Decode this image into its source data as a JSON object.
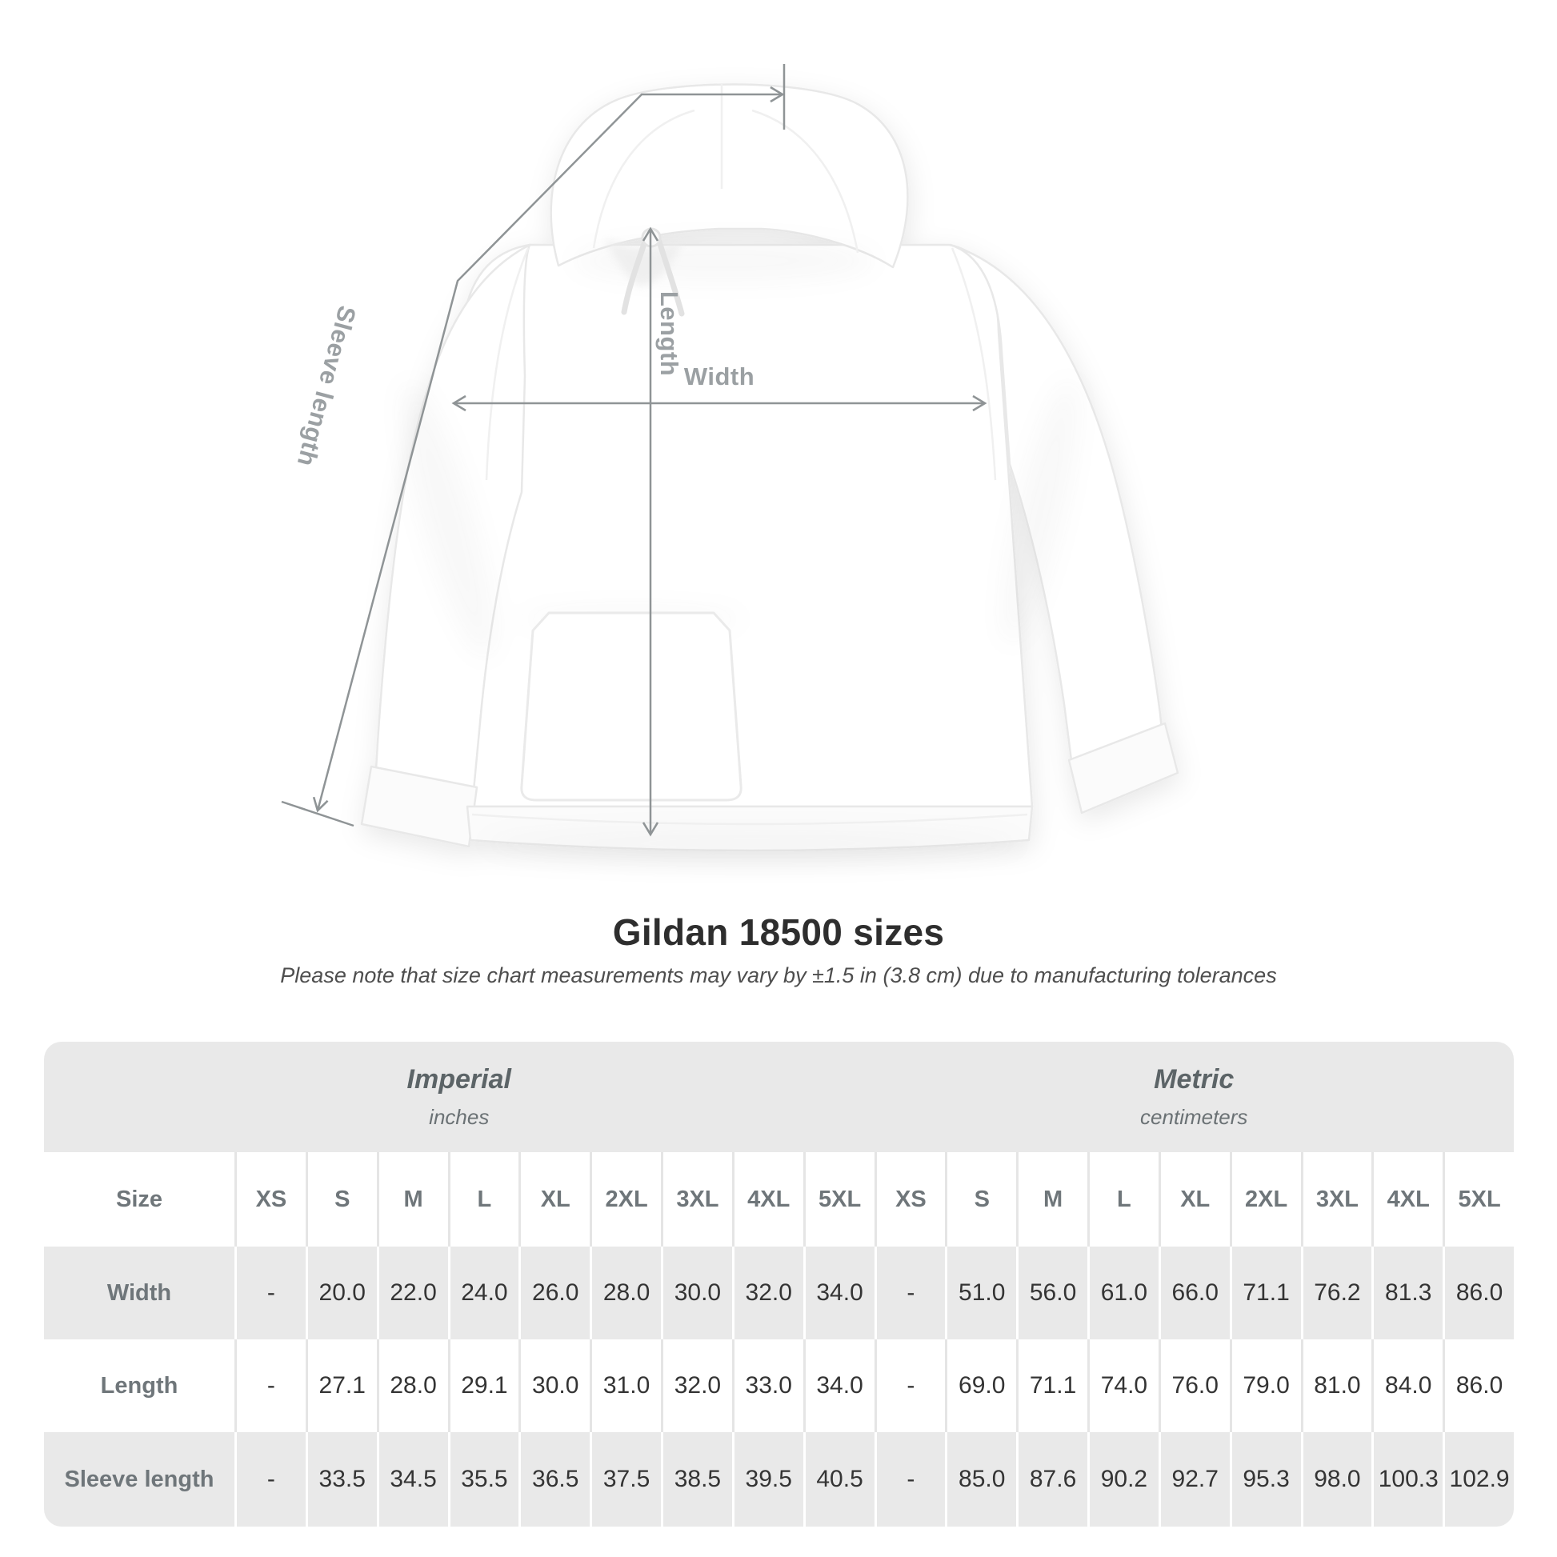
{
  "diagram": {
    "width_label": "Width",
    "length_label": "Length",
    "sleeve_label": "Sleeve length",
    "line_color": "#8f9496",
    "label_color": "#9ba0a3"
  },
  "title": "Gildan 18500 sizes",
  "subtitle": "Please note that size chart measurements may vary by ±1.5 in (3.8 cm) due to manufacturing tolerances",
  "table": {
    "size_header": "Size",
    "unit_groups": [
      {
        "name": "Imperial",
        "unit": "inches"
      },
      {
        "name": "Metric",
        "unit": "centimeters"
      }
    ],
    "sizes": [
      "XS",
      "S",
      "M",
      "L",
      "XL",
      "2XL",
      "3XL",
      "4XL",
      "5XL"
    ],
    "rows": [
      {
        "label": "Width",
        "imperial": [
          "-",
          "20.0",
          "22.0",
          "24.0",
          "26.0",
          "28.0",
          "30.0",
          "32.0",
          "34.0"
        ],
        "metric": [
          "-",
          "51.0",
          "56.0",
          "61.0",
          "66.0",
          "71.1",
          "76.2",
          "81.3",
          "86.0"
        ]
      },
      {
        "label": "Length",
        "imperial": [
          "-",
          "27.1",
          "28.0",
          "29.1",
          "30.0",
          "31.0",
          "32.0",
          "33.0",
          "34.0"
        ],
        "metric": [
          "-",
          "69.0",
          "71.1",
          "74.0",
          "76.0",
          "79.0",
          "81.0",
          "84.0",
          "86.0"
        ]
      },
      {
        "label": "Sleeve length",
        "imperial": [
          "-",
          "33.5",
          "34.5",
          "35.5",
          "36.5",
          "37.5",
          "38.5",
          "39.5",
          "40.5"
        ],
        "metric": [
          "-",
          "85.0",
          "87.6",
          "90.2",
          "92.7",
          "95.3",
          "98.0",
          "100.3",
          "102.9"
        ]
      }
    ],
    "colors": {
      "band": "#e9e9e9",
      "header_text": "#6f767a",
      "value_text": "#343434"
    }
  }
}
